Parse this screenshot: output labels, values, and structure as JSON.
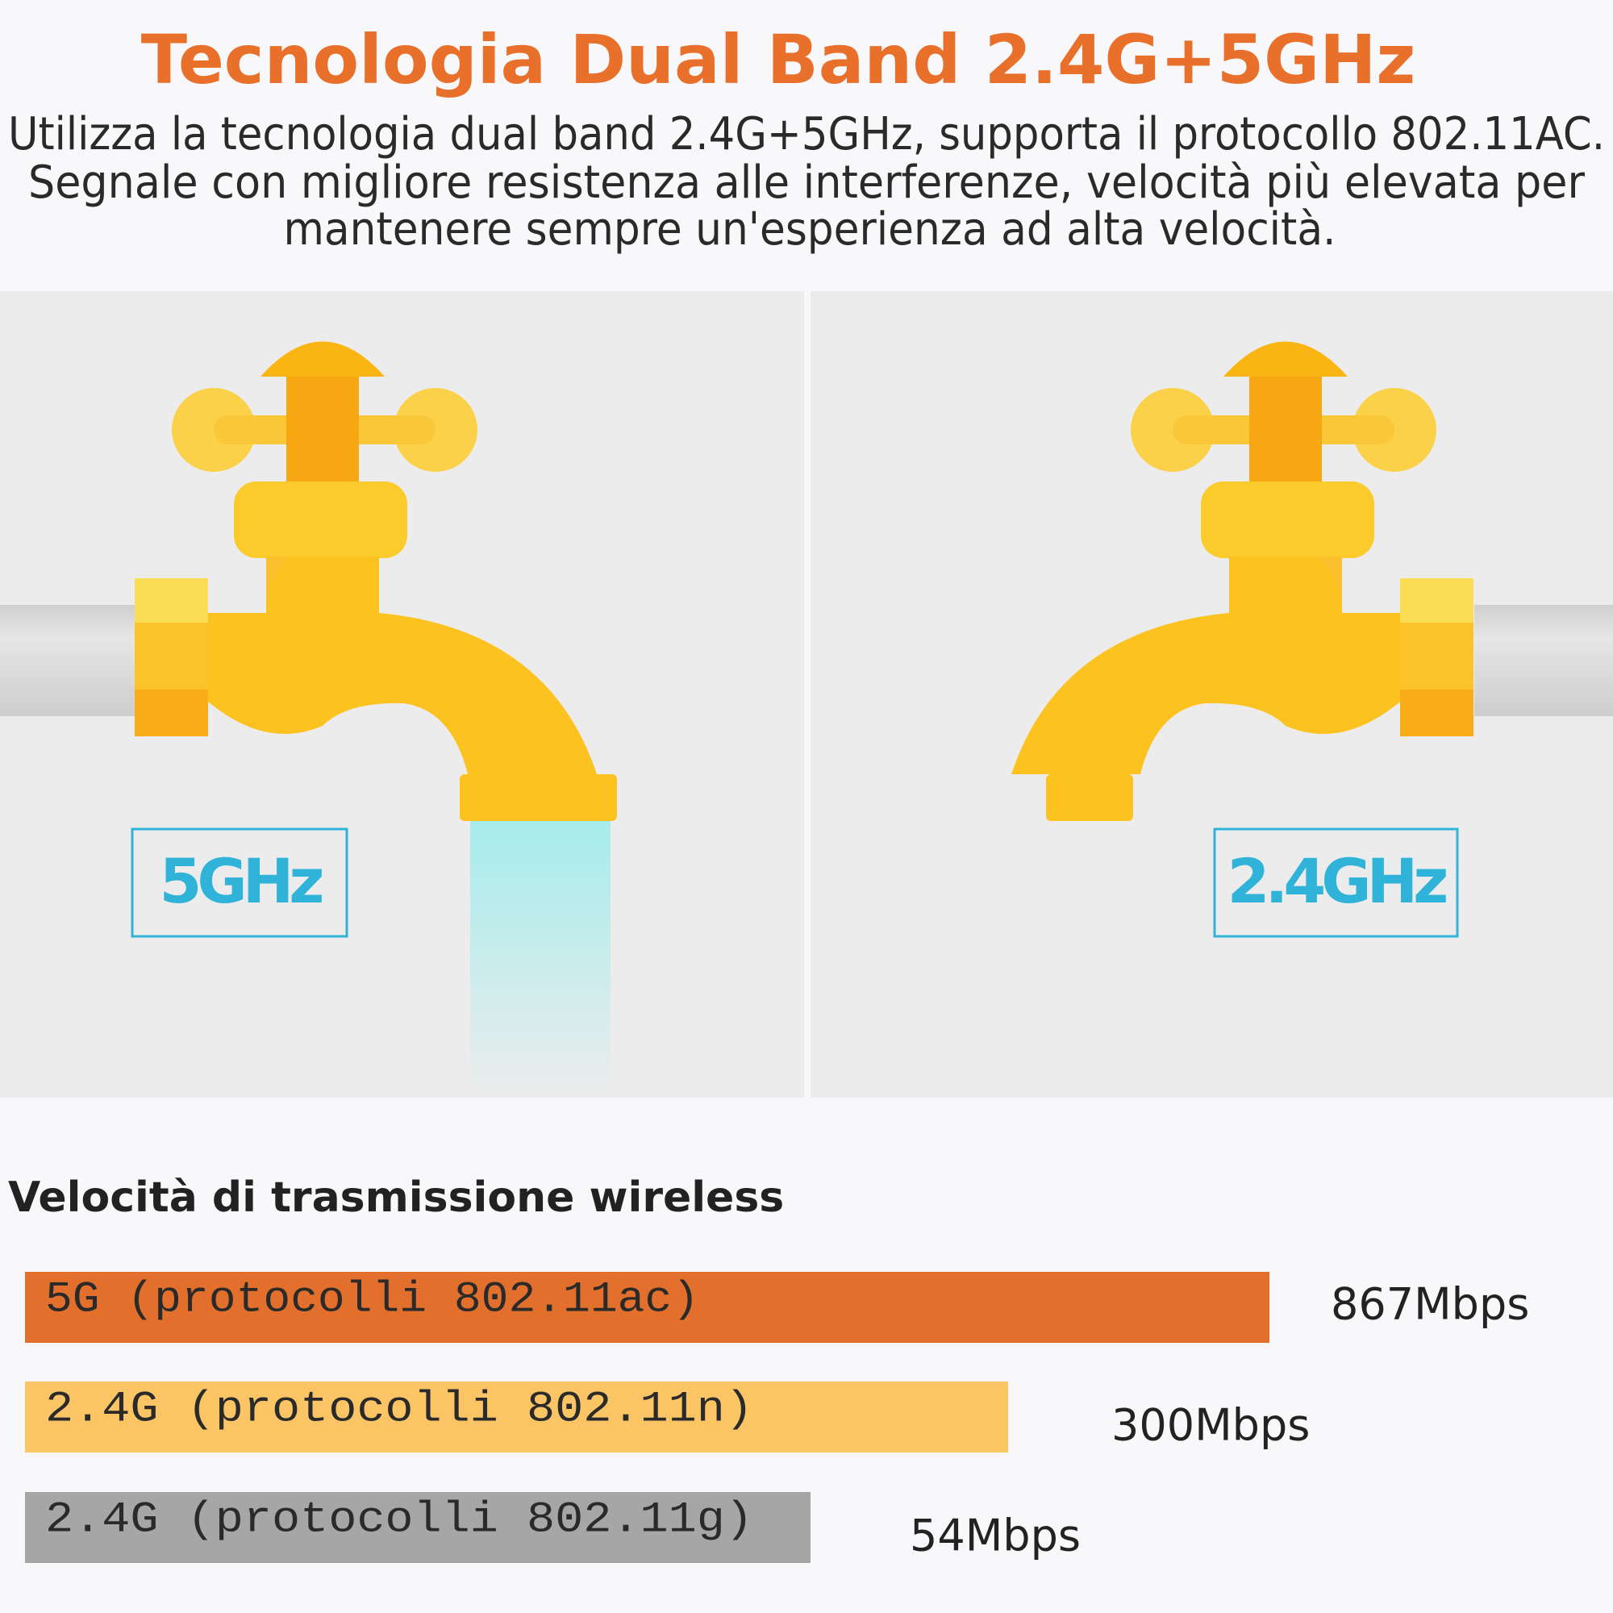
{
  "header": {
    "title": "Tecnologia Dual Band 2.4G+5GHz",
    "description": [
      "Utilizza la tecnologia dual band 2.4G+5GHz, supporta il protocollo 802.11AC.",
      "Segnale con migliore resistenza alle interferenze, velocità più elevata per",
      "mantenere sempre un'esperienza ad alta velocità."
    ]
  },
  "panels": [
    {
      "label": "5GHz"
    },
    {
      "label": "2.4GHz"
    }
  ],
  "speed": {
    "title": "Velocità di trasmissione wireless",
    "rows": [
      {
        "label": "5G (protocolli 802.11ac)",
        "speed": "867Mbps"
      },
      {
        "label": "2.4G (protocolli 802.11n)",
        "speed": "300Mbps"
      },
      {
        "label": "2.4G (protocolli 802.11g)",
        "speed": "54Mbps"
      }
    ]
  }
}
